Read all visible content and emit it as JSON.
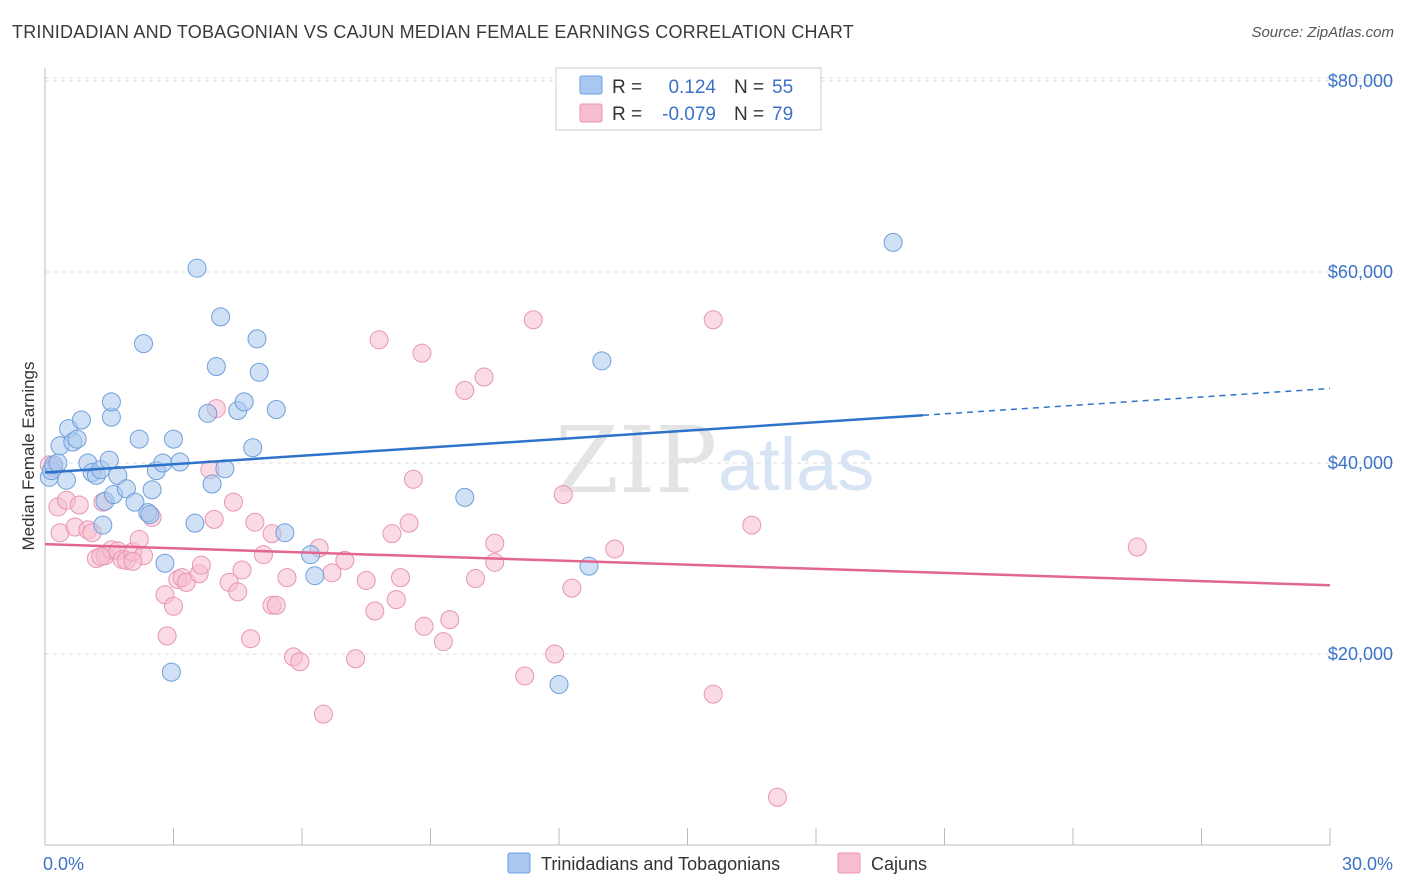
{
  "title": "TRINIDADIAN AND TOBAGONIAN VS CAJUN MEDIAN FEMALE EARNINGS CORRELATION CHART",
  "source": "Source: ZipAtlas.com",
  "watermark": {
    "zip": "ZIP",
    "atlas": "atlas"
  },
  "legend_top": [
    {
      "r_label": "R =",
      "r_value": "0.124",
      "n_label": "N =",
      "n_value": "55"
    },
    {
      "r_label": "R =",
      "r_value": "-0.079",
      "n_label": "N =",
      "n_value": "79"
    }
  ],
  "legend_bottom": [
    "Trinidadians and Tobagonians",
    "Cajuns"
  ],
  "colors": {
    "blue_fill": "#a9c8ef",
    "blue_stroke": "#6f9fdc",
    "blue_line": "#2f72c9",
    "pink_fill": "#f6bdd0",
    "pink_stroke": "#e895b2",
    "pink_line": "#e2668f",
    "grid": "#dddddd",
    "tick_label": "#3b72c8"
  },
  "chart_data": {
    "type": "scatter",
    "title": "TRINIDADIAN AND TOBAGONIAN VS CAJUN MEDIAN FEMALE EARNINGS CORRELATION CHART",
    "xlabel": "",
    "ylabel": "Median Female Earnings",
    "xlim": [
      0,
      30
    ],
    "ylim": [
      0,
      82000
    ],
    "x_tick_labels": [
      "0.0%",
      "30.0%"
    ],
    "y_ticks": [
      20000,
      40000,
      60000,
      80000
    ],
    "y_tick_labels": [
      "$20,000",
      "$40,000",
      "$60,000",
      "$80,000"
    ],
    "series": [
      {
        "name": "Trinidadians and Tobagonians",
        "r": 0.124,
        "n": 55,
        "trend": {
          "x0": 0,
          "y0": 39000,
          "x1": 20.5,
          "y1": 45000,
          "x_dash_end": 30,
          "y_dash_end": 47800
        },
        "points": [
          [
            0.1,
            38500
          ],
          [
            0.15,
            39200
          ],
          [
            0.2,
            39800
          ],
          [
            0.3,
            40000
          ],
          [
            0.35,
            41800
          ],
          [
            0.5,
            38200
          ],
          [
            0.55,
            43600
          ],
          [
            0.65,
            42200
          ],
          [
            0.75,
            42500
          ],
          [
            0.85,
            44500
          ],
          [
            1.0,
            40000
          ],
          [
            1.1,
            39000
          ],
          [
            1.2,
            38700
          ],
          [
            1.3,
            39300
          ],
          [
            1.35,
            33500
          ],
          [
            1.4,
            36000
          ],
          [
            1.5,
            40300
          ],
          [
            1.6,
            36700
          ],
          [
            1.7,
            38700
          ],
          [
            1.55,
            44800
          ],
          [
            1.9,
            37300
          ],
          [
            2.1,
            35900
          ],
          [
            2.2,
            42500
          ],
          [
            2.4,
            34800
          ],
          [
            2.45,
            34600
          ],
          [
            2.5,
            37200
          ],
          [
            2.6,
            39200
          ],
          [
            2.75,
            40000
          ],
          [
            2.8,
            29500
          ],
          [
            2.95,
            18100
          ],
          [
            3.0,
            42500
          ],
          [
            3.15,
            40100
          ],
          [
            3.5,
            33700
          ],
          [
            3.8,
            45200
          ],
          [
            3.9,
            37800
          ],
          [
            4.0,
            50100
          ],
          [
            4.1,
            55300
          ],
          [
            4.2,
            39400
          ],
          [
            4.5,
            45500
          ],
          [
            4.65,
            46400
          ],
          [
            4.85,
            41600
          ],
          [
            4.95,
            53000
          ],
          [
            5.0,
            49500
          ],
          [
            5.4,
            45600
          ],
          [
            5.6,
            32700
          ],
          [
            6.2,
            30400
          ],
          [
            6.3,
            28200
          ],
          [
            9.8,
            36400
          ],
          [
            12.0,
            16800
          ],
          [
            12.7,
            29200
          ],
          [
            13.0,
            50700
          ],
          [
            19.8,
            63100
          ],
          [
            3.55,
            60400
          ],
          [
            2.3,
            52500
          ],
          [
            1.55,
            46400
          ]
        ]
      },
      {
        "name": "Cajuns",
        "r": -0.079,
        "n": 79,
        "trend": {
          "x0": 0,
          "y0": 31500,
          "x1": 30,
          "y1": 27200
        },
        "points": [
          [
            0.1,
            39800
          ],
          [
            0.2,
            39500
          ],
          [
            0.3,
            35400
          ],
          [
            0.35,
            32700
          ],
          [
            0.5,
            36100
          ],
          [
            0.7,
            33300
          ],
          [
            0.8,
            35600
          ],
          [
            1.0,
            33000
          ],
          [
            1.1,
            32700
          ],
          [
            1.2,
            30000
          ],
          [
            1.35,
            35900
          ],
          [
            1.4,
            30300
          ],
          [
            1.55,
            30900
          ],
          [
            1.7,
            30800
          ],
          [
            1.8,
            29900
          ],
          [
            1.9,
            29800
          ],
          [
            2.05,
            30700
          ],
          [
            2.2,
            32000
          ],
          [
            2.3,
            30300
          ],
          [
            2.5,
            34300
          ],
          [
            2.8,
            26200
          ],
          [
            2.85,
            21900
          ],
          [
            3.0,
            25000
          ],
          [
            3.1,
            27800
          ],
          [
            3.2,
            28000
          ],
          [
            3.3,
            27500
          ],
          [
            3.6,
            28400
          ],
          [
            3.65,
            29300
          ],
          [
            3.85,
            39300
          ],
          [
            3.95,
            34100
          ],
          [
            4.0,
            45700
          ],
          [
            4.3,
            27500
          ],
          [
            4.4,
            35900
          ],
          [
            4.5,
            26500
          ],
          [
            4.6,
            28800
          ],
          [
            4.8,
            21600
          ],
          [
            4.9,
            33800
          ],
          [
            5.1,
            30400
          ],
          [
            5.3,
            32600
          ],
          [
            5.3,
            25100
          ],
          [
            5.4,
            25100
          ],
          [
            5.65,
            28000
          ],
          [
            5.8,
            19700
          ],
          [
            5.95,
            19200
          ],
          [
            6.4,
            31100
          ],
          [
            6.5,
            13700
          ],
          [
            6.7,
            28500
          ],
          [
            7.0,
            29800
          ],
          [
            7.25,
            19500
          ],
          [
            7.5,
            27700
          ],
          [
            7.7,
            24500
          ],
          [
            7.8,
            52900
          ],
          [
            8.1,
            32600
          ],
          [
            8.2,
            25700
          ],
          [
            8.3,
            28000
          ],
          [
            8.5,
            33700
          ],
          [
            8.6,
            38300
          ],
          [
            8.8,
            51500
          ],
          [
            8.85,
            22900
          ],
          [
            9.3,
            21300
          ],
          [
            9.45,
            23600
          ],
          [
            9.8,
            47600
          ],
          [
            10.05,
            27900
          ],
          [
            10.25,
            49000
          ],
          [
            10.5,
            31600
          ],
          [
            10.5,
            29600
          ],
          [
            11.2,
            17700
          ],
          [
            11.4,
            55000
          ],
          [
            11.9,
            20000
          ],
          [
            12.1,
            36700
          ],
          [
            12.3,
            26900
          ],
          [
            13.3,
            31000
          ],
          [
            15.6,
            55000
          ],
          [
            15.6,
            15800
          ],
          [
            16.5,
            33500
          ],
          [
            17.1,
            5000
          ],
          [
            25.5,
            31200
          ],
          [
            2.05,
            29700
          ],
          [
            1.3,
            30200
          ]
        ]
      }
    ]
  }
}
